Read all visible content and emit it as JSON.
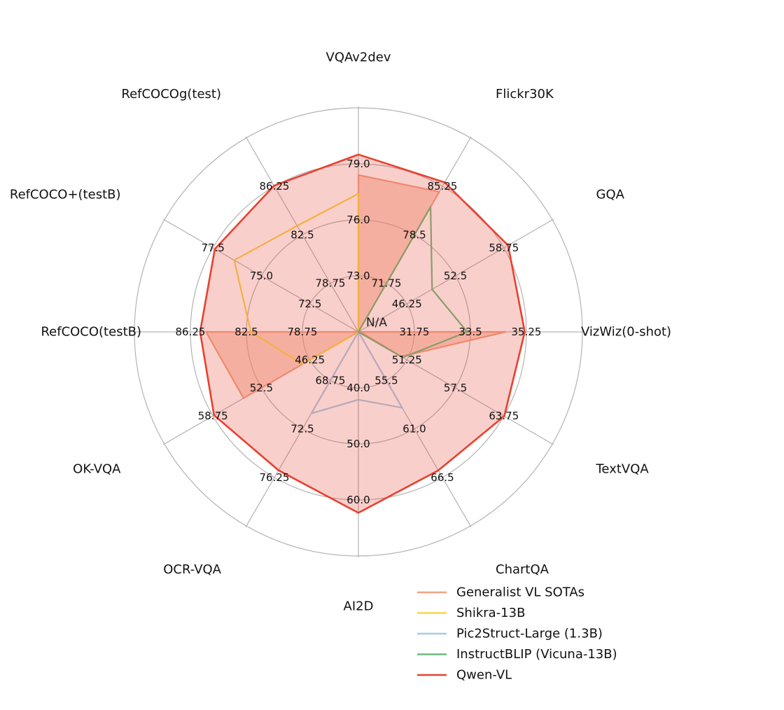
{
  "chart_data": {
    "type": "radar",
    "center_label": "N/A",
    "axes": [
      {
        "label": "VQAv2dev",
        "ticks": [
          "73.0",
          "76.0",
          "79.0"
        ]
      },
      {
        "label": "Flickr30K",
        "ticks": [
          "71.75",
          "78.5",
          "85.25"
        ]
      },
      {
        "label": "GQA",
        "ticks": [
          "46.25",
          "52.5",
          "58.75"
        ]
      },
      {
        "label": "VizWiz(0-shot)",
        "ticks": [
          "31.75",
          "33.5",
          "35.25"
        ]
      },
      {
        "label": "TextVQA",
        "ticks": [
          "51.25",
          "57.5",
          "63.75"
        ]
      },
      {
        "label": "ChartQA",
        "ticks": [
          "55.5",
          "61.0",
          "66.5"
        ]
      },
      {
        "label": "AI2D",
        "ticks": [
          "40.0",
          "50.0",
          "60.0"
        ]
      },
      {
        "label": "OCR-VQA",
        "ticks": [
          "68.75",
          "72.5",
          "76.25"
        ]
      },
      {
        "label": "OK-VQA",
        "ticks": [
          "46.25",
          "52.5",
          "58.75"
        ]
      },
      {
        "label": "RefCOCO(testB)",
        "ticks": [
          "78.75",
          "82.5",
          "86.25"
        ]
      },
      {
        "label": "RefCOCO+(testB)",
        "ticks": [
          "72.5",
          "75.0",
          "77.5"
        ]
      },
      {
        "label": "RefCOCOg(test)",
        "ticks": [
          "78.75",
          "82.5",
          "86.25"
        ]
      }
    ],
    "series": [
      {
        "name": "Generalist VL SOTAs",
        "color": "#f0a283",
        "filled": true,
        "values": [
          78.4,
          84.5,
          null,
          34.6,
          50.5,
          49.8,
          null,
          null,
          54.8,
          85.2,
          null,
          null
        ]
      },
      {
        "name": "Shikra-13B",
        "color": "#f9d648",
        "filled": false,
        "values": [
          77.4,
          null,
          null,
          null,
          null,
          null,
          null,
          null,
          47.2,
          82.2,
          76.4,
          83.2
        ]
      },
      {
        "name": "Pic2Struct-Large (1.3B)",
        "color": "#a7cbe9",
        "filled": false,
        "values": [
          null,
          null,
          null,
          null,
          null,
          58.6,
          42.1,
          71.3,
          null,
          null,
          null,
          null
        ]
      },
      {
        "name": "InstructBLIP (Vicuna-13B)",
        "color": "#6cbb7b",
        "filled": false,
        "values": [
          null,
          82.4,
          49.5,
          33.4,
          50.7,
          null,
          null,
          null,
          null,
          null,
          null,
          null
        ]
      },
      {
        "name": "Qwen-VL",
        "color": "#e8412f",
        "filled": true,
        "values": [
          79.5,
          85.8,
          59.3,
          35.2,
          63.8,
          65.7,
          62.3,
          75.7,
          58.6,
          85.6,
          77.4,
          86.3
        ]
      }
    ],
    "rlim": [
      0,
      4
    ],
    "ring_positions": [
      1,
      2,
      3
    ],
    "ring_tick_base": [
      70.0,
      65.0,
      40.0,
      30.0,
      45.0,
      50.0,
      30.0,
      65.0,
      40.0,
      75.0,
      70.0,
      75.0
    ],
    "ring_tick_step": [
      3.0,
      6.75,
      6.25,
      1.75,
      6.25,
      5.5,
      10.0,
      3.75,
      6.25,
      3.75,
      2.5,
      3.75
    ],
    "grid": true,
    "legend_position": "bottom-right"
  }
}
